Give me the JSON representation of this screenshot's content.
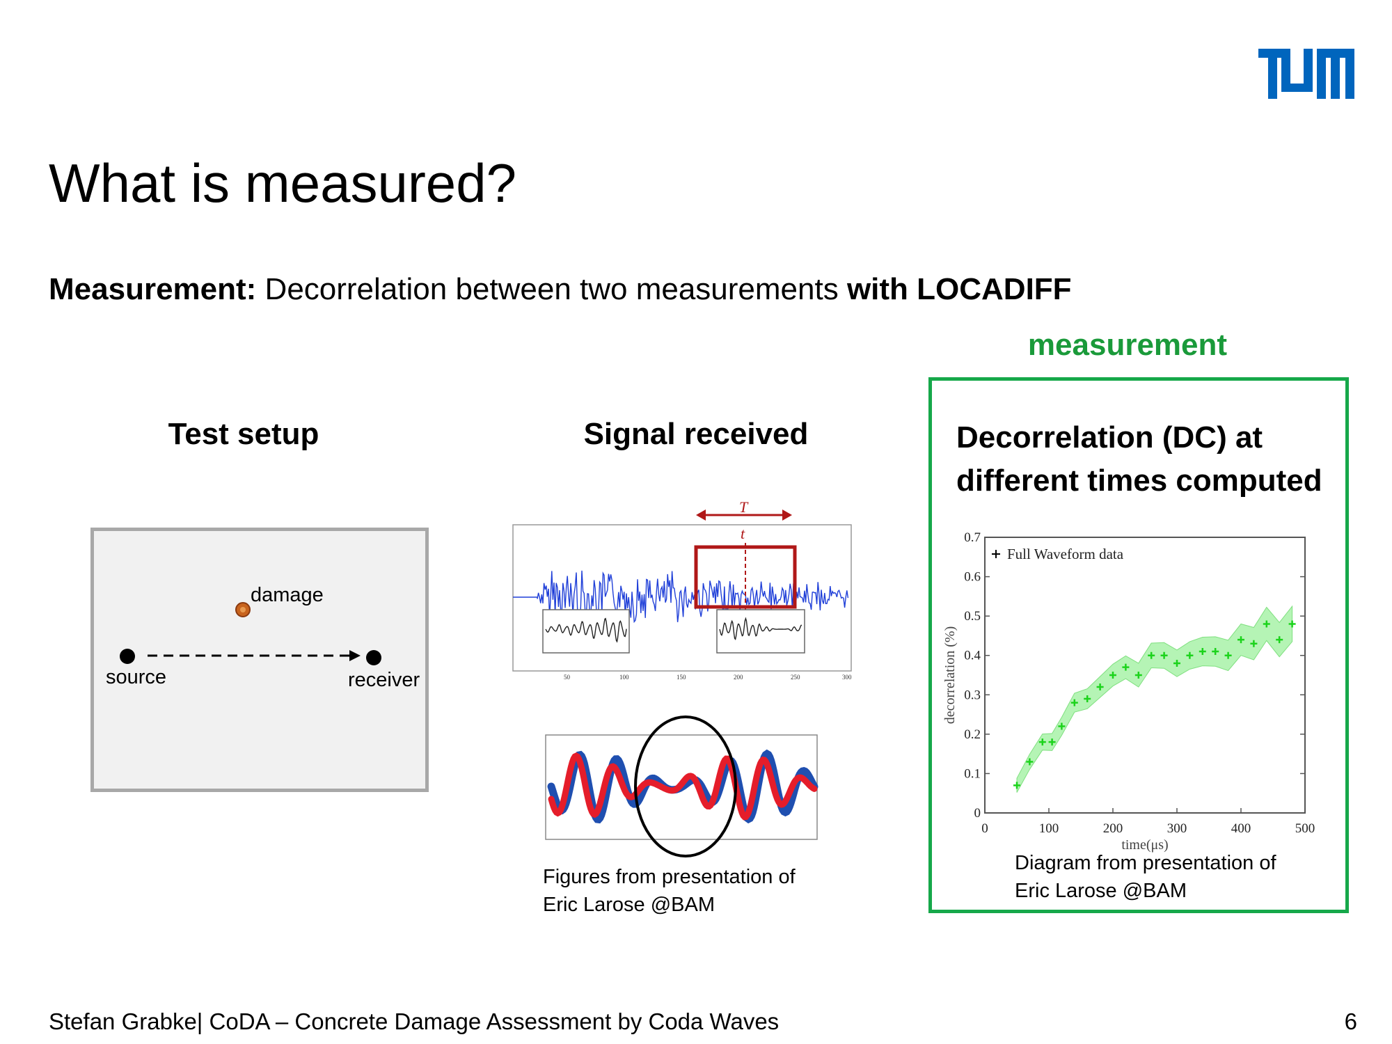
{
  "slide": {
    "title": "What is measured?",
    "subtitle": {
      "bold_lead": "Measurement:",
      "text": " Decorrelation between two measurements ",
      "bold_tail": "with LOCADIFF"
    },
    "page_number": "6",
    "footer": "Stefan Grabke| CoDA – Concrete Damage Assessment by Coda Waves"
  },
  "columns": {
    "setup": {
      "heading": "Test setup",
      "labels": {
        "damage": "damage",
        "source": "source",
        "receiver": "receiver"
      }
    },
    "signal": {
      "heading": "Signal received",
      "window_labels": {
        "T": "T",
        "t": "t"
      },
      "caption_line1": "Figures from presentation of",
      "caption_line2": "Eric Larose @BAM"
    },
    "dc": {
      "tag": "measurement",
      "heading_line1": "Decorrelation (DC) at",
      "heading_line2": "different times computed",
      "caption_line1": "Diagram from presentation of",
      "caption_line2": "Eric Larose @BAM"
    }
  },
  "colors": {
    "tum_blue": "#0065bd",
    "accent_green": "#16a84a",
    "signal_blue": "#1f3fd8",
    "signal_red": "#e51d2a",
    "window_red": "#b01818",
    "damage_orange": "#c8641e"
  },
  "chart_data": [
    {
      "type": "scatter",
      "title": "",
      "xlabel": "time(μs)",
      "ylabel": "decorrelation (%)",
      "xlim": [
        0,
        500
      ],
      "ylim": [
        0,
        0.7
      ],
      "xticks": [
        "0",
        "100",
        "200",
        "300",
        "400",
        "500"
      ],
      "yticks": [
        "0",
        "0.1",
        "0.2",
        "0.3",
        "0.4",
        "0.5",
        "0.6",
        "0.7"
      ],
      "legend": "top-left",
      "grid": false,
      "series": [
        {
          "name": "Full Waveform data",
          "x": [
            50,
            70,
            90,
            105,
            120,
            140,
            160,
            180,
            200,
            220,
            240,
            260,
            280,
            300,
            320,
            340,
            360,
            380,
            400,
            420,
            440,
            460,
            480
          ],
          "y": [
            0.07,
            0.13,
            0.18,
            0.18,
            0.22,
            0.28,
            0.29,
            0.32,
            0.35,
            0.37,
            0.35,
            0.4,
            0.4,
            0.38,
            0.4,
            0.41,
            0.41,
            0.4,
            0.44,
            0.43,
            0.48,
            0.44,
            0.48
          ]
        }
      ]
    }
  ]
}
